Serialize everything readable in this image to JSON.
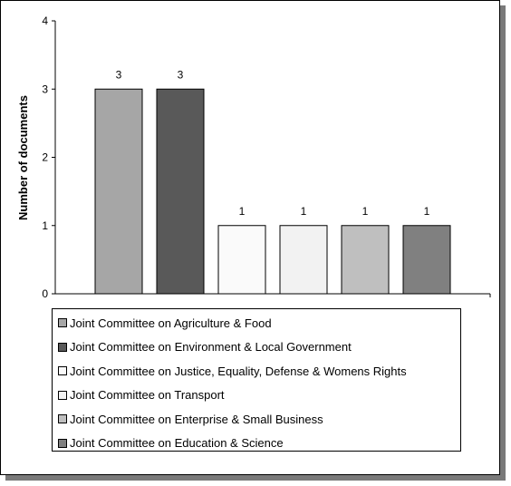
{
  "chart_data": {
    "type": "bar",
    "title": "",
    "xlabel": "",
    "ylabel": "Number of documents",
    "ylim": [
      0,
      4
    ],
    "yticks": [
      0,
      1,
      2,
      3,
      4
    ],
    "grid": false,
    "legend_position": "bottom",
    "series": [
      {
        "name": "Joint Committee on Agriculture & Food",
        "value": 3,
        "color": "#a6a6a6"
      },
      {
        "name": "Joint Committee on Environment & Local Government",
        "value": 3,
        "color": "#595959"
      },
      {
        "name": "Joint Committee on Justice, Equality, Defense & Womens Rights",
        "value": 1,
        "color": "#fafafa"
      },
      {
        "name": "Joint Committee on Transport",
        "value": 1,
        "color": "#f2f2f2"
      },
      {
        "name": "Joint Committee on Enterprise & Small Business",
        "value": 1,
        "color": "#bfbfbf"
      },
      {
        "name": "Joint Committee on Education & Science",
        "value": 1,
        "color": "#808080"
      }
    ]
  }
}
